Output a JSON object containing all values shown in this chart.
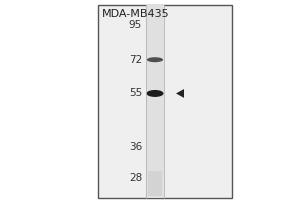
{
  "title": "MDA-MB435",
  "mw_markers": [
    95,
    72,
    55,
    36,
    28
  ],
  "band1_mw": 72,
  "band2_mw": 55,
  "arrow_mw": 55,
  "fig_bg": "#d8d8d8",
  "gel_bg": "#f0f0f0",
  "lane_bg": "#c8c8c8",
  "band1_color": "#1a1a1a",
  "band2_color": "#111111",
  "title_fontsize": 8,
  "marker_fontsize": 7.5
}
